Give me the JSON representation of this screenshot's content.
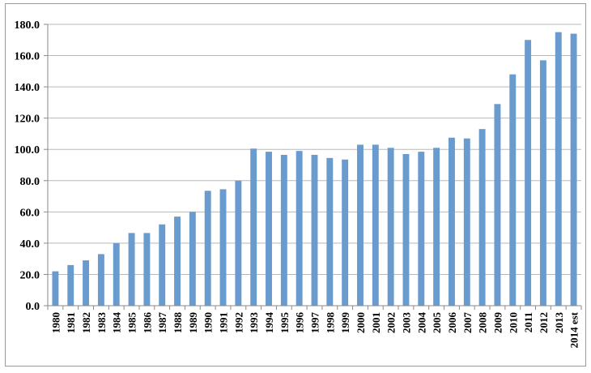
{
  "chart_data": {
    "type": "bar",
    "title": "",
    "xlabel": "",
    "ylabel": "",
    "ylim": [
      0,
      180
    ],
    "yticks": [
      0,
      20,
      40,
      60,
      80,
      100,
      120,
      140,
      160,
      180
    ],
    "ytick_labels": [
      "0.0",
      "20.0",
      "40.0",
      "60.0",
      "80.0",
      "100.0",
      "120.0",
      "140.0",
      "160.0",
      "180.0"
    ],
    "grid": true,
    "legend": "none",
    "bar_color": "#6a9bce",
    "categories": [
      "1980",
      "1981",
      "1982",
      "1983",
      "1984",
      "1985",
      "1986",
      "1987",
      "1988",
      "1989",
      "1990",
      "1991",
      "1992",
      "1993",
      "1994",
      "1995",
      "1996",
      "1997",
      "1998",
      "1999",
      "2000",
      "2001",
      "2002",
      "2003",
      "2004",
      "2005",
      "2006",
      "2007",
      "2008",
      "2009",
      "2010",
      "2011",
      "2012",
      "2013",
      "2014 est"
    ],
    "values": [
      22,
      26,
      29,
      33,
      40,
      46.5,
      46.5,
      52,
      57,
      60,
      73.5,
      74.5,
      80,
      100.5,
      98.5,
      96.5,
      99,
      96.5,
      94.5,
      93.5,
      103,
      103,
      101,
      97,
      98.5,
      101,
      107.5,
      107,
      113,
      129,
      148,
      170,
      157,
      175,
      174
    ]
  }
}
